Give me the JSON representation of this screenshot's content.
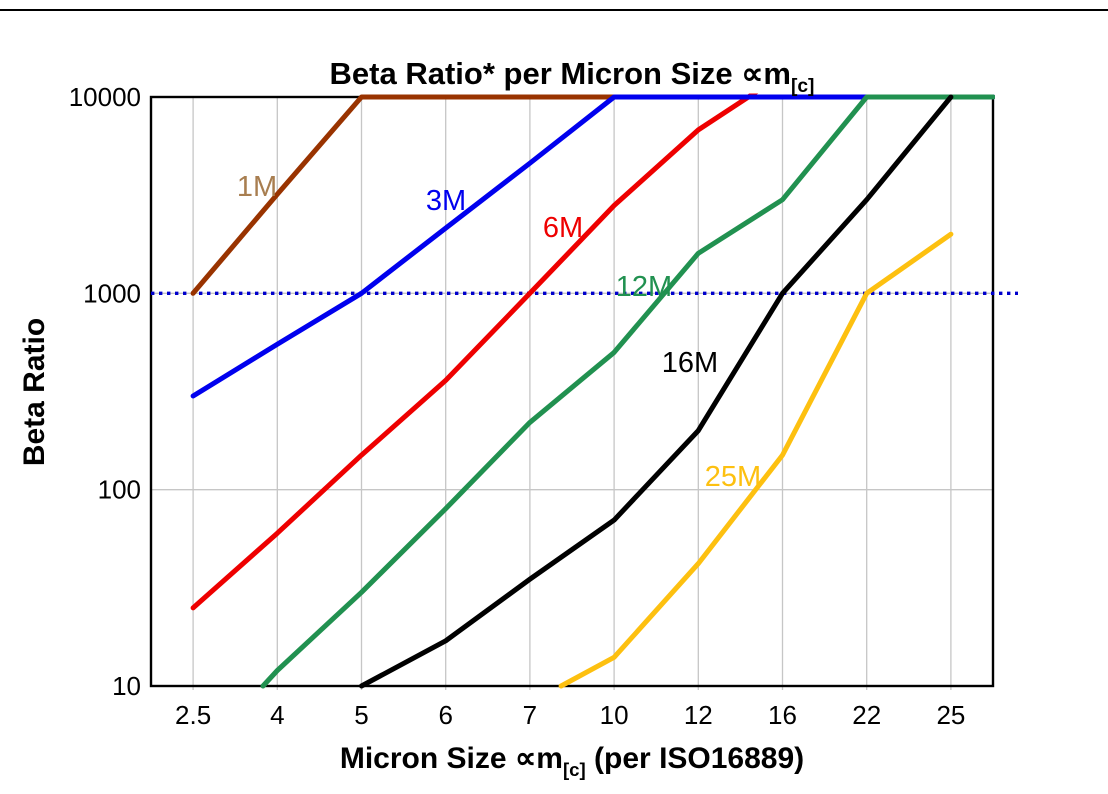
{
  "page": {
    "background": "#ffffff",
    "top_rule_color": "#000000"
  },
  "chart_data": {
    "type": "line",
    "scale": "log-y",
    "title": {
      "text": "Beta Ratio* per Micron Size ∝m[c]",
      "parts": [
        {
          "t": "Beta Ratio* per Micron Size ∝m"
        },
        {
          "t": "[c]",
          "sub": true
        }
      ]
    },
    "x_axis": {
      "title_text": "Micron Size ∝m[c] (per ISO16889)",
      "title_parts": [
        {
          "t": "Micron Size ∝m"
        },
        {
          "t": "[c]",
          "sub": true
        },
        {
          "t": " (per ISO16889)"
        }
      ],
      "categories": [
        "2.5",
        "4",
        "5",
        "6",
        "7",
        "10",
        "12",
        "16",
        "22",
        "25"
      ]
    },
    "y_axis": {
      "title": "Beta Ratio",
      "scale": "log",
      "range": [
        10,
        10000
      ],
      "ticks": [
        {
          "value": 10000,
          "label": "10000"
        },
        {
          "value": 1000,
          "label": "1000"
        },
        {
          "value": 100,
          "label": "100"
        },
        {
          "value": 10,
          "label": "10"
        }
      ]
    },
    "grid": {
      "vertical_every_category": true,
      "horizontal_values": [
        100,
        1000
      ],
      "color": "#c6c6c6"
    },
    "reference_line": {
      "value": 1000,
      "style": "dotted",
      "color": "#0000cc"
    },
    "legend_position": "inline-labels",
    "series": [
      {
        "name": "1M",
        "color": "#993300",
        "label_color": "#a87e50",
        "label_pos": [
          257,
          196
        ],
        "z": 2,
        "values": [
          1000,
          3200,
          10000,
          10000,
          10000,
          10000,
          10000,
          10000,
          10000,
          10000
        ],
        "path": [
          [
            0,
            1000
          ],
          [
            1,
            3200
          ],
          [
            2,
            10000
          ],
          [
            9.5,
            10000
          ]
        ]
      },
      {
        "name": "3M",
        "color": "#0000ee",
        "label_color": "#0000ee",
        "label_pos": [
          446,
          210
        ],
        "z": 3,
        "values": [
          300,
          550,
          1000,
          2150,
          4600,
          10000,
          10000,
          10000,
          10000,
          10000
        ],
        "path": [
          [
            0,
            300
          ],
          [
            1,
            550
          ],
          [
            2,
            1000
          ],
          [
            3,
            2150
          ],
          [
            4,
            4600
          ],
          [
            5,
            10000
          ],
          [
            9.5,
            10000
          ]
        ]
      },
      {
        "name": "6M",
        "color": "#ee0000",
        "label_color": "#ee0000",
        "label_pos": [
          563,
          237
        ],
        "z": 1,
        "values": [
          25,
          60,
          150,
          360,
          1000,
          2800,
          6800,
          10000,
          10000,
          10000
        ],
        "path": [
          [
            0,
            25
          ],
          [
            1,
            60
          ],
          [
            2,
            150
          ],
          [
            3,
            360
          ],
          [
            4,
            1000
          ],
          [
            5,
            2800
          ],
          [
            6,
            6800
          ],
          [
            7,
            13000
          ],
          [
            9.5,
            13000
          ]
        ]
      },
      {
        "name": "12M",
        "color": "#219150",
        "label_color": "#219150",
        "label_pos": [
          644,
          296
        ],
        "z": 4,
        "values": [
          null,
          12,
          30,
          80,
          220,
          500,
          1600,
          3000,
          10000,
          10000
        ],
        "path": [
          [
            0.83,
            10
          ],
          [
            1,
            12
          ],
          [
            2,
            30
          ],
          [
            3,
            80
          ],
          [
            4,
            220
          ],
          [
            5,
            500
          ],
          [
            6,
            1600
          ],
          [
            7,
            3000
          ],
          [
            8,
            10000
          ],
          [
            9.5,
            10000
          ]
        ]
      },
      {
        "name": "16M",
        "color": "#000000",
        "label_color": "#000000",
        "label_pos": [
          690,
          372
        ],
        "z": 6,
        "values": [
          null,
          null,
          10,
          17,
          35,
          70,
          200,
          1000,
          3000,
          10000
        ],
        "path": [
          [
            2,
            10
          ],
          [
            3,
            17
          ],
          [
            4,
            35
          ],
          [
            5,
            70
          ],
          [
            6,
            200
          ],
          [
            7,
            1000
          ],
          [
            8,
            3000
          ],
          [
            9,
            10000
          ]
        ]
      },
      {
        "name": "25M",
        "color": "#fdc010",
        "label_color": "#fdc010",
        "label_pos": [
          733,
          486
        ],
        "z": 5,
        "values": [
          null,
          null,
          null,
          null,
          null,
          14,
          42,
          150,
          1000,
          2000
        ],
        "path": [
          [
            4.37,
            10
          ],
          [
            5,
            14
          ],
          [
            6,
            42
          ],
          [
            7,
            150
          ],
          [
            8,
            1000
          ],
          [
            9,
            2000
          ]
        ]
      }
    ]
  }
}
